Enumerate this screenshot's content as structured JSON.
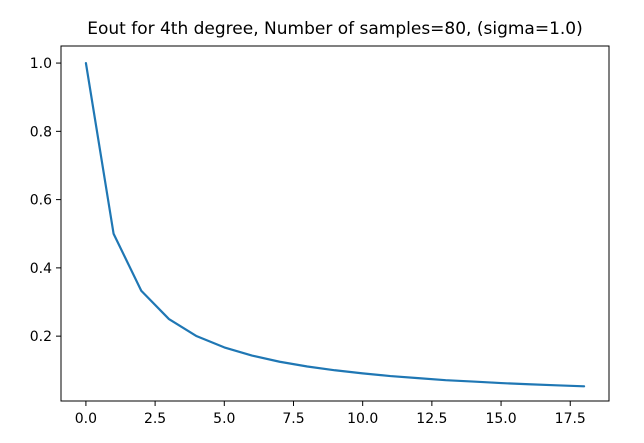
{
  "chart_data": {
    "type": "line",
    "title": "Eout for 4th degree, Number of samples=80, (sigma=1.0)",
    "xlabel": "",
    "ylabel": "",
    "xlim": [
      -0.9,
      18.9
    ],
    "ylim": [
      0.01,
      1.05
    ],
    "xticks": [
      0.0,
      2.5,
      5.0,
      7.5,
      10.0,
      12.5,
      15.0,
      17.5
    ],
    "xtick_labels": [
      "0.0",
      "2.5",
      "5.0",
      "7.5",
      "10.0",
      "12.5",
      "15.0",
      "17.5"
    ],
    "yticks": [
      0.2,
      0.4,
      0.6,
      0.8,
      1.0
    ],
    "ytick_labels": [
      "0.2",
      "0.4",
      "0.6",
      "0.8",
      "1.0"
    ],
    "grid": false,
    "series": [
      {
        "color": "#1f77b4",
        "x": [
          0,
          1,
          2,
          3,
          4,
          5,
          6,
          7,
          8,
          9,
          10,
          11,
          12,
          13,
          14,
          15,
          16,
          17,
          18
        ],
        "y": [
          1.0,
          0.5,
          0.333,
          0.25,
          0.2,
          0.167,
          0.143,
          0.125,
          0.111,
          0.1,
          0.091,
          0.083,
          0.077,
          0.071,
          0.067,
          0.0625,
          0.059,
          0.056,
          0.053
        ]
      }
    ]
  }
}
